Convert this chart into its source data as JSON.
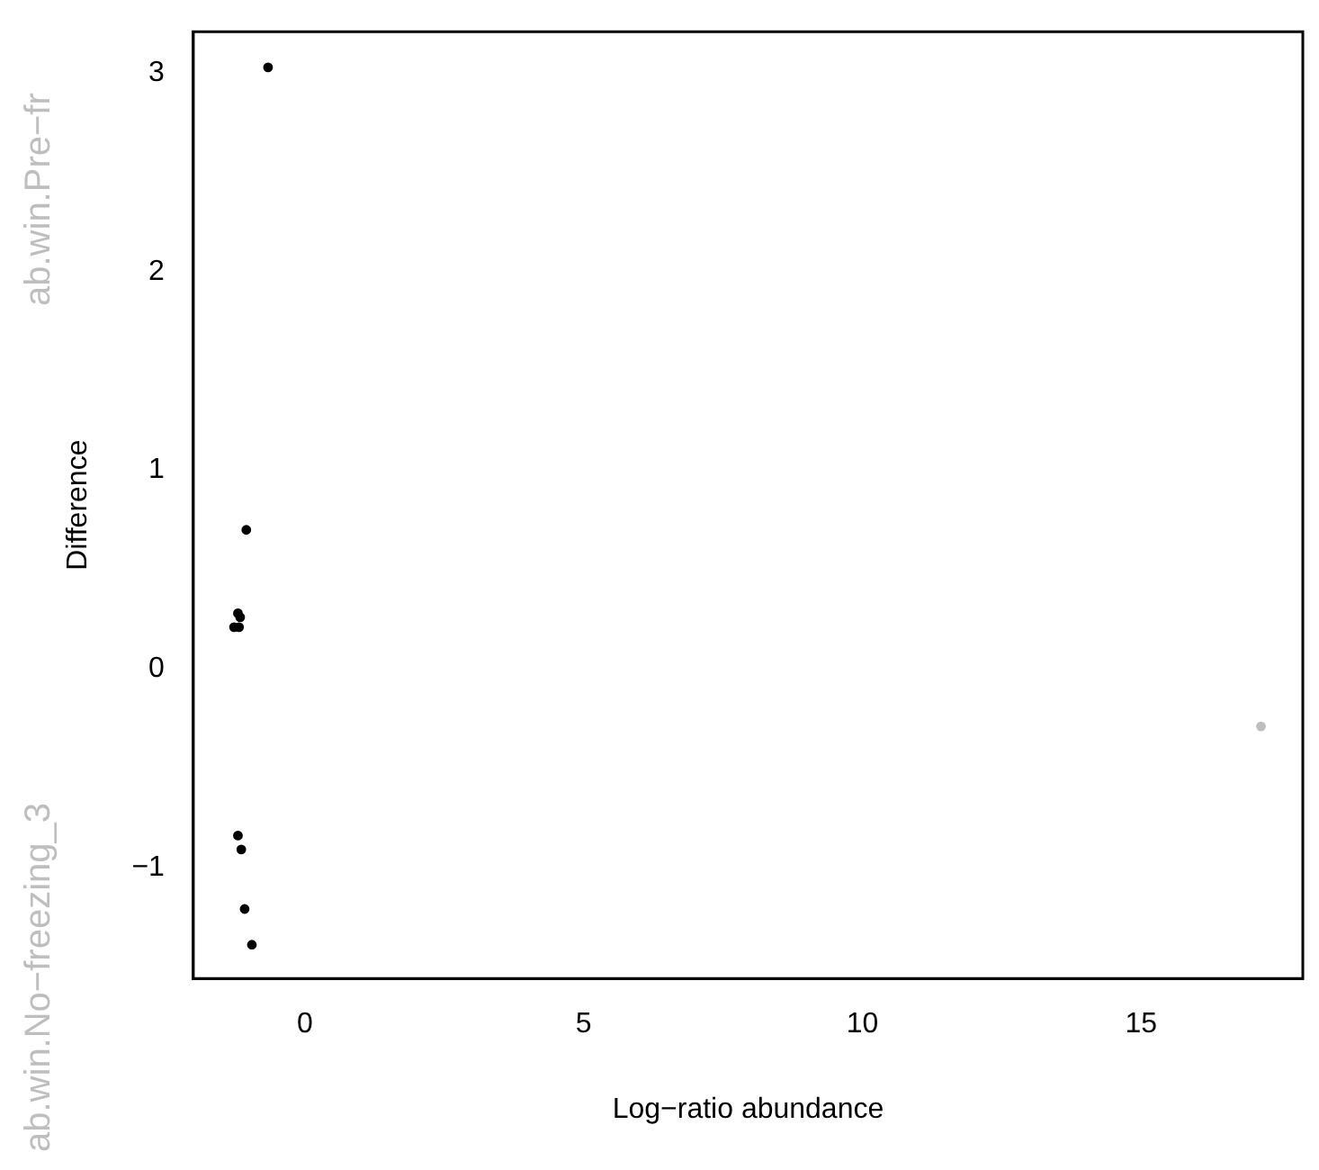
{
  "chart_data": {
    "type": "scatter",
    "xlabel": "Log−ratio abundance",
    "ylabel": "Difference",
    "series": [
      {
        "x": [
          -0.66,
          -1.05,
          -1.2,
          -1.16,
          -1.27,
          -1.18,
          -1.2,
          -1.14,
          -1.08,
          -0.95,
          17.15
        ],
        "values": [
          3.03,
          0.7,
          0.28,
          0.26,
          0.21,
          0.21,
          -0.84,
          -0.91,
          -1.21,
          -1.39,
          -0.29
        ],
        "colors": [
          "#000000",
          "#000000",
          "#000000",
          "#000000",
          "#000000",
          "#000000",
          "#000000",
          "#000000",
          "#000000",
          "#000000",
          "#bebebe"
        ]
      }
    ],
    "xlim": [
      -2,
      17.9
    ],
    "ylim": [
      -1.56,
      3.21
    ],
    "xticks": [
      0,
      5,
      10,
      15
    ],
    "yticks": [
      -1,
      0,
      1,
      2,
      3
    ],
    "annotations": [
      "ab.win.No−freezing_3",
      "ab.win.Pre−fr"
    ],
    "marker": "circle",
    "grid": false,
    "legend": false
  }
}
